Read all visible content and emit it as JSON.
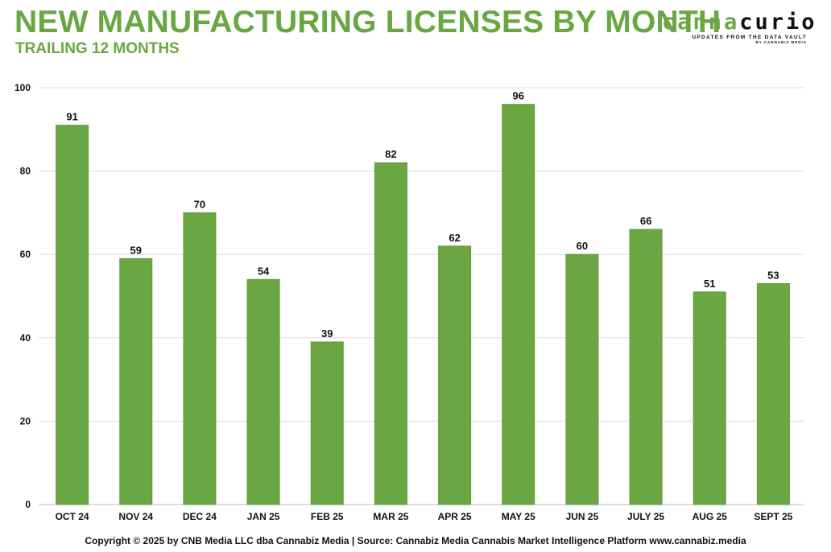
{
  "chart_data": {
    "type": "bar",
    "title": "NEW MANUFACTURING LICENSES BY MONTH",
    "subtitle": "TRAILING 12 MONTHS",
    "categories": [
      "OCT 24",
      "NOV 24",
      "DEC 24",
      "JAN 25",
      "FEB 25",
      "MAR 25",
      "APR 25",
      "MAY 25",
      "JUN 25",
      "JULY 25",
      "AUG 25",
      "SEPT 25"
    ],
    "values": [
      91,
      59,
      70,
      54,
      39,
      82,
      62,
      96,
      60,
      66,
      51,
      53
    ],
    "xlabel": "",
    "ylabel": "",
    "ylim": [
      0,
      100
    ],
    "yticks": [
      0,
      20,
      40,
      60,
      80,
      100
    ],
    "grid": true,
    "bar_color": "#6aa743"
  },
  "logo": {
    "word_part1": "canna",
    "word_part2": "curio",
    "tagline": "UPDATES FROM THE DATA VAULT",
    "byline": "BY CANNABIZ MEDIA"
  },
  "footer": {
    "text": "Copyright © 2025 by CNB Media LLC dba Cannabiz Media | Source: Cannabiz Media Cannabis Market Intelligence Platform www.cannabiz.media"
  }
}
